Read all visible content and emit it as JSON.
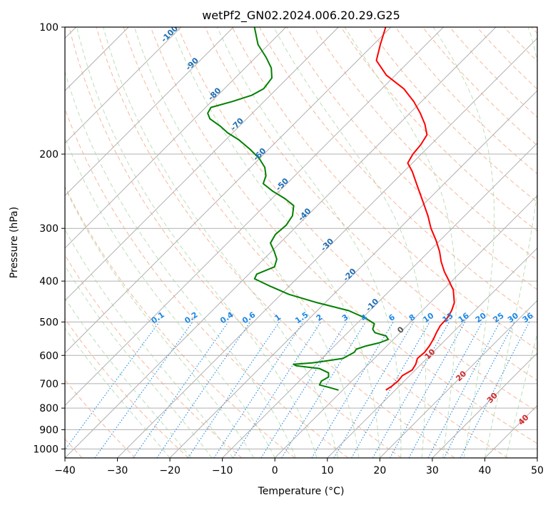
{
  "chart_data": {
    "type": "line",
    "title": "wetPf2_GN02.2024.006.20.29.G25",
    "xlabel": "Temperature (°C)",
    "ylabel": "Pressure (hPa)",
    "xlim": [
      -40,
      50
    ],
    "ylim": [
      1050,
      100
    ],
    "y_scale": "log",
    "skew_deg": 45,
    "grid": true,
    "x_ticks": [
      -40,
      -30,
      -20,
      -10,
      0,
      10,
      20,
      30,
      40,
      50
    ],
    "y_ticks": [
      1000,
      900,
      800,
      700,
      600,
      500,
      400,
      300,
      200,
      100
    ],
    "colors": {
      "temperature": "#ff0000",
      "dewpoint": "#008000",
      "dry_adiabat": "#f4a582",
      "moist_adiabat": "#a6d49f",
      "mixing_ratio": "#1e88e5",
      "isotherm_label": "#1f6eb4",
      "warm_label": "#d62728",
      "zero_label": "#555555",
      "grid": "#b0b0b0"
    },
    "isotherm_labels": [
      {
        "text": "-100",
        "t": -100
      },
      {
        "text": "-90",
        "t": -90
      },
      {
        "text": "-80",
        "t": -80
      },
      {
        "text": "-70",
        "t": -70
      },
      {
        "text": "-60",
        "t": -60
      },
      {
        "text": "-50",
        "t": -50
      },
      {
        "text": "-40",
        "t": -40
      },
      {
        "text": "-30",
        "t": -30
      },
      {
        "text": "-20",
        "t": -20
      },
      {
        "text": "-10",
        "t": -10
      },
      {
        "text": "0",
        "t": 0
      },
      {
        "text": "10",
        "t": 10
      },
      {
        "text": "20",
        "t": 20
      },
      {
        "text": "30",
        "t": 30
      },
      {
        "text": "40",
        "t": 40
      }
    ],
    "mixing_ratio_labels": [
      "0.1",
      "0.2",
      "0.4",
      "0.6",
      "1",
      "1.5",
      "2",
      "3",
      "4",
      "6",
      "8",
      "10",
      "13",
      "16",
      "20",
      "25",
      "30",
      "36"
    ],
    "mixing_ratio_values": [
      0.1,
      0.2,
      0.4,
      0.6,
      1,
      1.5,
      2,
      3,
      4,
      6,
      8,
      10,
      13,
      16,
      20,
      25,
      30,
      36
    ],
    "series": [
      {
        "name": "Temperature",
        "points": [
          [
            725,
            8.2
          ],
          [
            710,
            8.6
          ],
          [
            690,
            8.8
          ],
          [
            670,
            8.6
          ],
          [
            650,
            9.4
          ],
          [
            630,
            9.0
          ],
          [
            610,
            8.2
          ],
          [
            590,
            8.4
          ],
          [
            570,
            8.1
          ],
          [
            550,
            7.6
          ],
          [
            530,
            6.9
          ],
          [
            510,
            6.3
          ],
          [
            490,
            6.2
          ],
          [
            470,
            5.6
          ],
          [
            450,
            4.6
          ],
          [
            420,
            2.0
          ],
          [
            400,
            -0.5
          ],
          [
            380,
            -3.2
          ],
          [
            360,
            -5.7
          ],
          [
            340,
            -8.0
          ],
          [
            320,
            -10.8
          ],
          [
            300,
            -14.0
          ],
          [
            280,
            -17.0
          ],
          [
            260,
            -20.5
          ],
          [
            240,
            -24.3
          ],
          [
            220,
            -28.4
          ],
          [
            210,
            -30.9
          ],
          [
            200,
            -31.6
          ],
          [
            190,
            -31.9
          ],
          [
            180,
            -32.6
          ],
          [
            170,
            -35.0
          ],
          [
            160,
            -38.0
          ],
          [
            150,
            -41.5
          ],
          [
            140,
            -45.8
          ],
          [
            130,
            -51.7
          ],
          [
            120,
            -56.4
          ],
          [
            110,
            -58.7
          ],
          [
            100,
            -61.0
          ]
        ]
      },
      {
        "name": "Dewpoint",
        "points": [
          [
            725,
            -0.8
          ],
          [
            715,
            -3.0
          ],
          [
            705,
            -5.4
          ],
          [
            690,
            -5.8
          ],
          [
            675,
            -5.2
          ],
          [
            660,
            -6.0
          ],
          [
            645,
            -8.5
          ],
          [
            635,
            -13.5
          ],
          [
            630,
            -14.3
          ],
          [
            625,
            -11.0
          ],
          [
            620,
            -9.3
          ],
          [
            610,
            -6.0
          ],
          [
            600,
            -5.5
          ],
          [
            590,
            -5.0
          ],
          [
            580,
            -5.2
          ],
          [
            570,
            -4.0
          ],
          [
            560,
            -2.0
          ],
          [
            550,
            -1.0
          ],
          [
            540,
            -2.0
          ],
          [
            530,
            -4.8
          ],
          [
            520,
            -5.9
          ],
          [
            505,
            -6.6
          ],
          [
            490,
            -9.3
          ],
          [
            470,
            -14.0
          ],
          [
            450,
            -21.5
          ],
          [
            430,
            -28.5
          ],
          [
            410,
            -34.0
          ],
          [
            395,
            -38.0
          ],
          [
            385,
            -38.5
          ],
          [
            370,
            -36.5
          ],
          [
            355,
            -37.5
          ],
          [
            340,
            -39.5
          ],
          [
            325,
            -41.8
          ],
          [
            310,
            -42.5
          ],
          [
            295,
            -42.2
          ],
          [
            280,
            -42.8
          ],
          [
            265,
            -44.5
          ],
          [
            255,
            -47.5
          ],
          [
            245,
            -51.2
          ],
          [
            235,
            -54.5
          ],
          [
            225,
            -55.5
          ],
          [
            215,
            -57.3
          ],
          [
            205,
            -60.0
          ],
          [
            195,
            -63.5
          ],
          [
            185,
            -67.5
          ],
          [
            178,
            -71.0
          ],
          [
            172,
            -73.5
          ],
          [
            165,
            -77.0
          ],
          [
            160,
            -78.5
          ],
          [
            155,
            -79.0
          ],
          [
            150,
            -76.0
          ],
          [
            145,
            -73.5
          ],
          [
            140,
            -72.5
          ],
          [
            132,
            -73.0
          ],
          [
            125,
            -75.0
          ],
          [
            118,
            -78.0
          ],
          [
            110,
            -82.0
          ],
          [
            100,
            -86.0
          ]
        ]
      }
    ]
  }
}
